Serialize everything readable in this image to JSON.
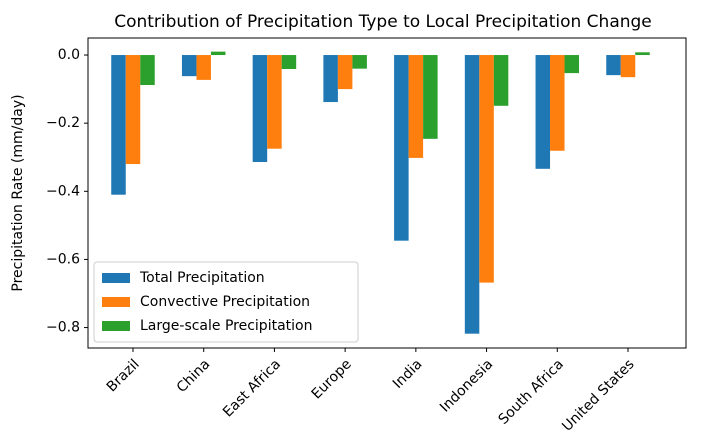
{
  "chart_data": {
    "type": "bar",
    "title": "Contribution of Precipitation Type to Local Precipitation Change",
    "y_label": "Precipitation Rate (mm/day)",
    "categories": [
      "Brazil",
      "China",
      "East Africa",
      "Europe",
      "India",
      "Indonesia",
      "South Africa",
      "United States"
    ],
    "series": [
      {
        "name": "Total Precipitation",
        "color": "#1f77b4",
        "values": [
          -0.41,
          -0.062,
          -0.314,
          -0.138,
          -0.545,
          -0.818,
          -0.334,
          -0.059
        ]
      },
      {
        "name": "Convective Precipitation",
        "color": "#ff7f0e",
        "values": [
          -0.32,
          -0.073,
          -0.275,
          -0.1,
          -0.302,
          -0.668,
          -0.281,
          -0.065
        ]
      },
      {
        "name": "Large-scale Precipitation",
        "color": "#2ca02c",
        "values": [
          -0.088,
          0.01,
          -0.041,
          -0.04,
          -0.246,
          -0.149,
          -0.053,
          0.008
        ]
      }
    ],
    "ylim": [
      -0.86,
      0.05
    ],
    "yticks": [
      {
        "value": 0,
        "label": "0.0"
      },
      {
        "value": -0.2,
        "label": "−0.2"
      },
      {
        "value": -0.4,
        "label": "−0.4"
      },
      {
        "value": -0.6,
        "label": "−0.6"
      },
      {
        "value": -0.8,
        "label": "−0.8"
      }
    ],
    "legend": "lower left"
  }
}
